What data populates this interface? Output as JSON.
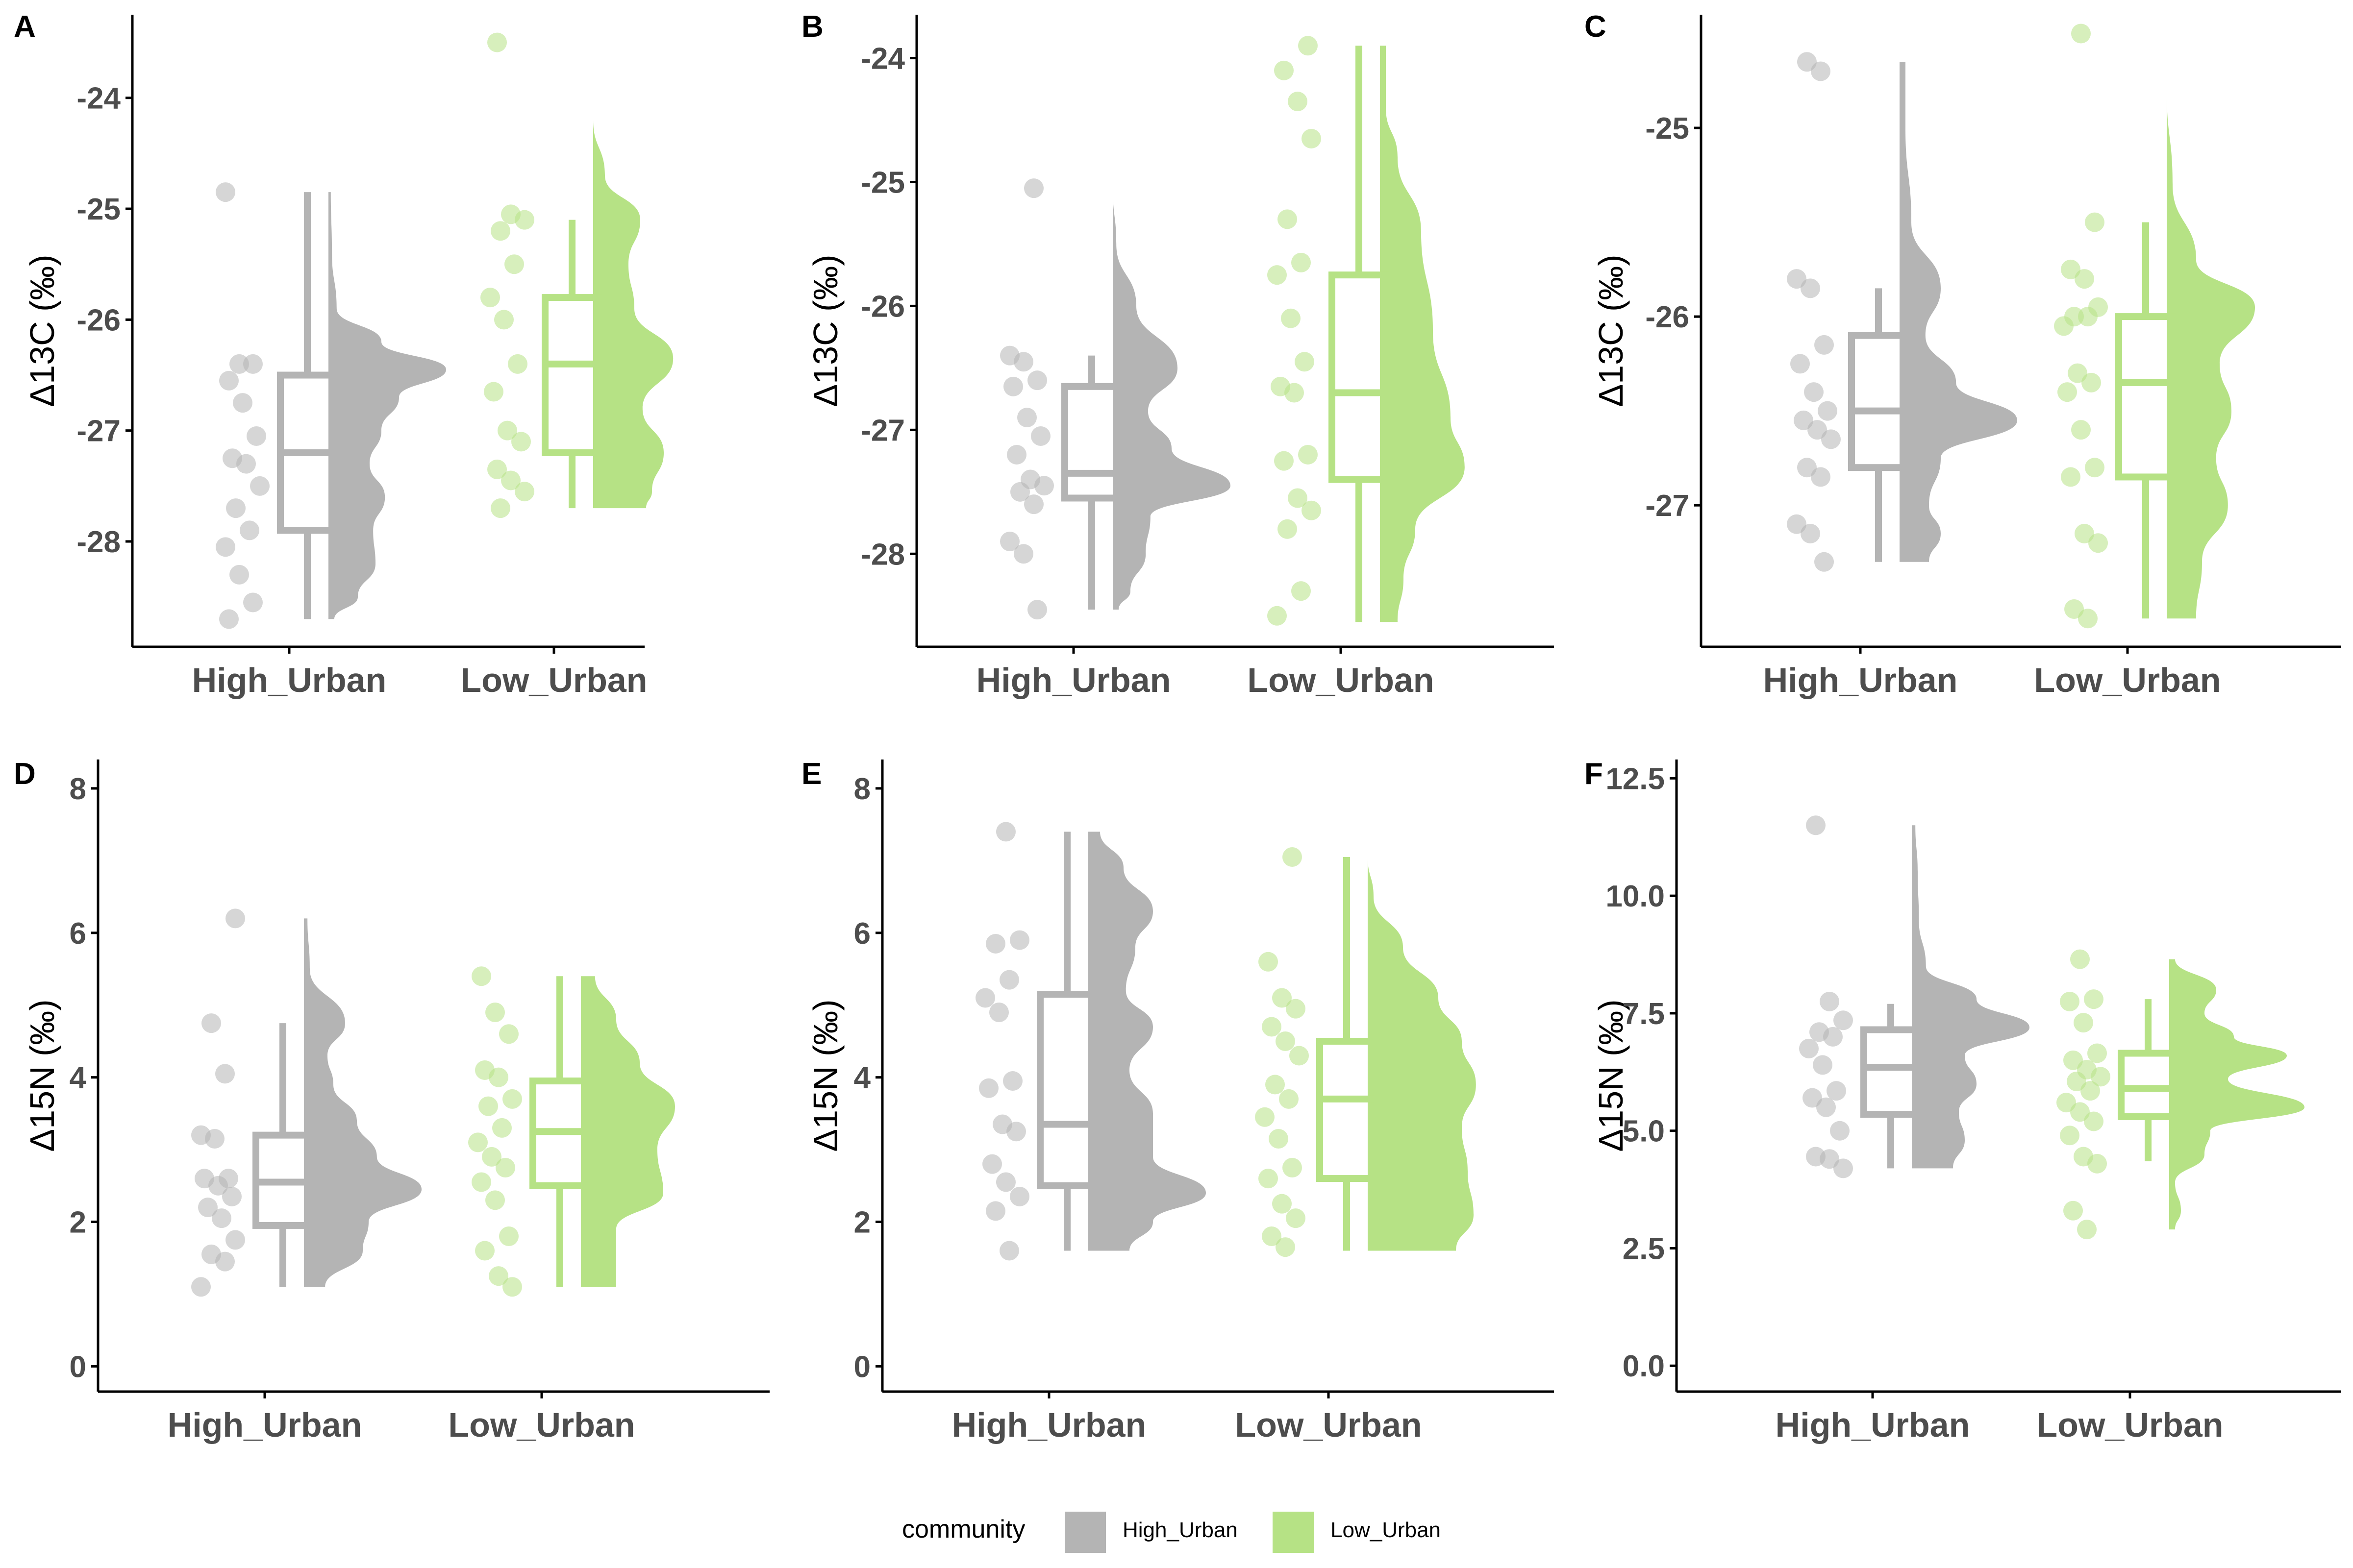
{
  "colors": {
    "High_Urban": "#b4b4b4",
    "Low_Urban": "#b6e285",
    "axis": "#000000",
    "tick_text": "#4d4d4d"
  },
  "legend": {
    "title": "community",
    "items": [
      "High_Urban",
      "Low_Urban"
    ],
    "position": "bottom"
  },
  "chart_data": [
    {
      "panel": "A",
      "type": "raincloud",
      "ylabel": "Δ13C (‰)",
      "categories": [
        "High_Urban",
        "Low_Urban"
      ],
      "ylim": [
        -28.95,
        -23.25
      ],
      "yticks": [
        -28,
        -27,
        -26,
        -25,
        -24
      ],
      "series": [
        {
          "name": "High_Urban",
          "box": {
            "min": -28.7,
            "q1": -27.9,
            "median": -27.2,
            "q3": -26.5,
            "max": -24.85
          },
          "points": [
            -24.85,
            -26.4,
            -26.4,
            -26.55,
            -26.75,
            -27.05,
            -27.25,
            -27.3,
            -27.5,
            -27.7,
            -27.9,
            -28.05,
            -28.3,
            -28.55,
            -28.7
          ],
          "density": [
            [
              -24.85,
              0.02
            ],
            [
              -25.4,
              0.03
            ],
            [
              -25.9,
              0.07
            ],
            [
              -26.2,
              0.45
            ],
            [
              -26.45,
              1.0
            ],
            [
              -26.7,
              0.6
            ],
            [
              -27.0,
              0.45
            ],
            [
              -27.3,
              0.35
            ],
            [
              -27.6,
              0.48
            ],
            [
              -27.9,
              0.38
            ],
            [
              -28.2,
              0.4
            ],
            [
              -28.5,
              0.25
            ],
            [
              -28.7,
              0.05
            ]
          ]
        },
        {
          "name": "Low_Urban",
          "box": {
            "min": -27.7,
            "q1": -27.2,
            "median": -26.4,
            "q3": -25.8,
            "max": -25.1
          },
          "points": [
            -23.5,
            -25.05,
            -25.1,
            -25.2,
            -25.5,
            -25.8,
            -26.0,
            -26.4,
            -26.65,
            -27.0,
            -27.1,
            -27.35,
            -27.45,
            -27.55,
            -27.7
          ],
          "density": [
            [
              -23.5,
              0.0
            ],
            [
              -24.2,
              0.0
            ],
            [
              -24.7,
              0.1
            ],
            [
              -25.1,
              0.4
            ],
            [
              -25.5,
              0.3
            ],
            [
              -25.9,
              0.35
            ],
            [
              -26.35,
              0.68
            ],
            [
              -26.8,
              0.42
            ],
            [
              -27.2,
              0.6
            ],
            [
              -27.55,
              0.5
            ],
            [
              -27.7,
              0.45
            ]
          ]
        }
      ]
    },
    {
      "panel": "B",
      "type": "raincloud",
      "ylabel": "Δ13C (‰)",
      "categories": [
        "High_Urban",
        "Low_Urban"
      ],
      "ylim": [
        -28.75,
        -23.65
      ],
      "yticks": [
        -28,
        -27,
        -26,
        -25,
        -24
      ],
      "series": [
        {
          "name": "High_Urban",
          "box": {
            "min": -28.45,
            "q1": -27.55,
            "median": -27.35,
            "q3": -26.65,
            "max": -26.4
          },
          "points": [
            -25.05,
            -26.4,
            -26.45,
            -26.6,
            -26.65,
            -26.9,
            -27.05,
            -27.2,
            -27.4,
            -27.45,
            -27.5,
            -27.6,
            -27.9,
            -28.0,
            -28.45
          ],
          "density": [
            [
              -25.05,
              0.0
            ],
            [
              -25.5,
              0.03
            ],
            [
              -26.0,
              0.2
            ],
            [
              -26.5,
              0.55
            ],
            [
              -26.85,
              0.3
            ],
            [
              -27.15,
              0.5
            ],
            [
              -27.45,
              1.0
            ],
            [
              -27.7,
              0.32
            ],
            [
              -28.0,
              0.28
            ],
            [
              -28.3,
              0.15
            ],
            [
              -28.45,
              0.05
            ]
          ]
        },
        {
          "name": "Low_Urban",
          "box": {
            "min": -28.55,
            "q1": -27.4,
            "median": -26.7,
            "q3": -25.75,
            "max": -23.9
          },
          "points": [
            -23.9,
            -24.1,
            -24.35,
            -24.65,
            -25.3,
            -25.65,
            -25.75,
            -26.1,
            -26.45,
            -26.65,
            -26.7,
            -27.2,
            -27.25,
            -27.55,
            -27.65,
            -27.8,
            -28.3,
            -28.5
          ],
          "density": [
            [
              -23.9,
              0.05
            ],
            [
              -24.4,
              0.05
            ],
            [
              -24.8,
              0.15
            ],
            [
              -25.4,
              0.35
            ],
            [
              -26.2,
              0.45
            ],
            [
              -26.9,
              0.6
            ],
            [
              -27.3,
              0.72
            ],
            [
              -27.8,
              0.3
            ],
            [
              -28.2,
              0.2
            ],
            [
              -28.55,
              0.15
            ]
          ]
        }
      ]
    },
    {
      "panel": "C",
      "type": "raincloud",
      "ylabel": "Δ13C (‰)",
      "categories": [
        "High_Urban",
        "Low_Urban"
      ],
      "ylim": [
        -27.75,
        -24.4
      ],
      "yticks": [
        -27,
        -26,
        -25
      ],
      "series": [
        {
          "name": "High_Urban",
          "box": {
            "min": -27.3,
            "q1": -26.8,
            "median": -26.5,
            "q3": -26.1,
            "max": -25.85
          },
          "points": [
            -24.65,
            -24.7,
            -25.8,
            -25.85,
            -26.15,
            -26.25,
            -26.4,
            -26.5,
            -26.55,
            -26.6,
            -26.65,
            -26.8,
            -26.85,
            -27.1,
            -27.15,
            -27.3
          ],
          "density": [
            [
              -24.65,
              0.05
            ],
            [
              -25.0,
              0.05
            ],
            [
              -25.5,
              0.1
            ],
            [
              -25.85,
              0.35
            ],
            [
              -26.1,
              0.22
            ],
            [
              -26.35,
              0.48
            ],
            [
              -26.55,
              1.0
            ],
            [
              -26.75,
              0.35
            ],
            [
              -27.0,
              0.25
            ],
            [
              -27.15,
              0.35
            ],
            [
              -27.3,
              0.25
            ]
          ]
        },
        {
          "name": "Low_Urban",
          "box": {
            "min": -27.6,
            "q1": -26.85,
            "median": -26.35,
            "q3": -26.0,
            "max": -25.5
          },
          "points": [
            -24.5,
            -25.5,
            -25.75,
            -25.8,
            -25.95,
            -26.0,
            -26.0,
            -26.05,
            -26.3,
            -26.35,
            -26.4,
            -26.6,
            -26.8,
            -26.85,
            -27.15,
            -27.2,
            -27.55,
            -27.6
          ],
          "density": [
            [
              -24.5,
              0.0
            ],
            [
              -24.8,
              0.0
            ],
            [
              -25.3,
              0.05
            ],
            [
              -25.7,
              0.25
            ],
            [
              -25.95,
              0.75
            ],
            [
              -26.25,
              0.45
            ],
            [
              -26.5,
              0.55
            ],
            [
              -26.75,
              0.42
            ],
            [
              -27.0,
              0.52
            ],
            [
              -27.3,
              0.3
            ],
            [
              -27.6,
              0.25
            ]
          ]
        }
      ]
    },
    {
      "panel": "D",
      "type": "raincloud",
      "ylabel": "Δ15N (‰)",
      "categories": [
        "High_Urban",
        "Low_Urban"
      ],
      "ylim": [
        -0.35,
        8.4
      ],
      "yticks": [
        0,
        2,
        4,
        6,
        8
      ],
      "series": [
        {
          "name": "High_Urban",
          "box": {
            "min": 1.1,
            "q1": 1.95,
            "median": 2.55,
            "q3": 3.2,
            "max": 4.75
          },
          "points": [
            6.2,
            4.75,
            4.05,
            3.2,
            3.15,
            2.6,
            2.6,
            2.5,
            2.35,
            2.2,
            2.05,
            1.75,
            1.55,
            1.45,
            1.1
          ],
          "density": [
            [
              6.2,
              0.03
            ],
            [
              5.5,
              0.05
            ],
            [
              4.75,
              0.35
            ],
            [
              4.3,
              0.2
            ],
            [
              3.9,
              0.25
            ],
            [
              3.4,
              0.45
            ],
            [
              2.9,
              0.62
            ],
            [
              2.45,
              1.0
            ],
            [
              2.0,
              0.55
            ],
            [
              1.6,
              0.5
            ],
            [
              1.1,
              0.18
            ]
          ]
        },
        {
          "name": "Low_Urban",
          "box": {
            "min": 1.1,
            "q1": 2.5,
            "median": 3.25,
            "q3": 3.95,
            "max": 5.4
          },
          "points": [
            5.4,
            4.9,
            4.6,
            4.1,
            4.0,
            3.7,
            3.6,
            3.3,
            3.1,
            2.9,
            2.75,
            2.55,
            2.3,
            1.8,
            1.6,
            1.25,
            1.1
          ],
          "density": [
            [
              5.4,
              0.12
            ],
            [
              4.8,
              0.3
            ],
            [
              4.2,
              0.5
            ],
            [
              3.6,
              0.8
            ],
            [
              3.0,
              0.65
            ],
            [
              2.4,
              0.7
            ],
            [
              1.9,
              0.3
            ],
            [
              1.5,
              0.3
            ],
            [
              1.1,
              0.3
            ]
          ]
        }
      ]
    },
    {
      "panel": "E",
      "type": "raincloud",
      "ylabel": "Δ15N (‰)",
      "categories": [
        "High_Urban",
        "Low_Urban"
      ],
      "ylim": [
        -0.35,
        8.4
      ],
      "yticks": [
        0,
        2,
        4,
        6,
        8
      ],
      "series": [
        {
          "name": "High_Urban",
          "box": {
            "min": 1.6,
            "q1": 2.5,
            "median": 3.35,
            "q3": 5.15,
            "max": 7.4
          },
          "points": [
            7.4,
            5.9,
            5.85,
            5.35,
            5.1,
            4.9,
            3.95,
            3.85,
            3.35,
            3.25,
            2.8,
            2.55,
            2.35,
            2.15,
            1.6
          ],
          "density": [
            [
              7.4,
              0.1
            ],
            [
              6.9,
              0.3
            ],
            [
              6.3,
              0.55
            ],
            [
              5.8,
              0.4
            ],
            [
              5.2,
              0.32
            ],
            [
              4.7,
              0.55
            ],
            [
              4.1,
              0.35
            ],
            [
              3.5,
              0.55
            ],
            [
              2.9,
              0.55
            ],
            [
              2.4,
              1.0
            ],
            [
              2.0,
              0.55
            ],
            [
              1.6,
              0.35
            ]
          ]
        },
        {
          "name": "Low_Urban",
          "box": {
            "min": 1.6,
            "q1": 2.6,
            "median": 3.7,
            "q3": 4.5,
            "max": 7.05
          },
          "points": [
            7.05,
            5.6,
            5.1,
            4.95,
            4.7,
            4.5,
            4.3,
            3.9,
            3.7,
            3.45,
            3.15,
            2.75,
            2.6,
            2.25,
            2.05,
            1.8,
            1.65
          ],
          "density": [
            [
              7.05,
              0.0
            ],
            [
              6.5,
              0.05
            ],
            [
              5.8,
              0.3
            ],
            [
              5.1,
              0.6
            ],
            [
              4.5,
              0.8
            ],
            [
              3.9,
              0.92
            ],
            [
              3.3,
              0.8
            ],
            [
              2.7,
              0.85
            ],
            [
              2.1,
              0.9
            ],
            [
              1.6,
              0.75
            ]
          ]
        }
      ]
    },
    {
      "panel": "F",
      "type": "raincloud",
      "ylabel": "Δ15N (‰)",
      "categories": [
        "High_Urban",
        "Low_Urban"
      ],
      "ylim": [
        -0.55,
        12.9
      ],
      "yticks": [
        0.0,
        2.5,
        5.0,
        7.5,
        10.0,
        12.5
      ],
      "series": [
        {
          "name": "High_Urban",
          "box": {
            "min": 4.2,
            "q1": 5.35,
            "median": 6.35,
            "q3": 7.15,
            "max": 7.7
          },
          "points": [
            11.5,
            7.75,
            7.35,
            7.1,
            7.0,
            6.75,
            6.4,
            5.85,
            5.7,
            5.5,
            5.0,
            4.45,
            4.4,
            4.2
          ],
          "density": [
            [
              11.5,
              0.03
            ],
            [
              10.5,
              0.05
            ],
            [
              9.5,
              0.06
            ],
            [
              8.5,
              0.12
            ],
            [
              7.8,
              0.55
            ],
            [
              7.2,
              1.0
            ],
            [
              6.6,
              0.45
            ],
            [
              6.0,
              0.55
            ],
            [
              5.4,
              0.4
            ],
            [
              4.8,
              0.45
            ],
            [
              4.2,
              0.35
            ]
          ]
        },
        {
          "name": "Low_Urban",
          "box": {
            "min": 4.35,
            "q1": 5.3,
            "median": 5.9,
            "q3": 6.65,
            "max": 7.8
          },
          "points": [
            8.65,
            7.8,
            7.75,
            7.3,
            6.65,
            6.5,
            6.3,
            6.15,
            6.05,
            5.85,
            5.6,
            5.4,
            5.2,
            4.9,
            4.45,
            4.3,
            3.3,
            2.9
          ],
          "density": [
            [
              8.65,
              0.05
            ],
            [
              8.0,
              0.4
            ],
            [
              7.5,
              0.3
            ],
            [
              7.0,
              0.55
            ],
            [
              6.6,
              1.0
            ],
            [
              6.1,
              0.5
            ],
            [
              5.5,
              1.15
            ],
            [
              5.0,
              0.35
            ],
            [
              4.5,
              0.3
            ],
            [
              3.9,
              0.05
            ],
            [
              3.3,
              0.1
            ],
            [
              2.9,
              0.05
            ]
          ]
        }
      ]
    }
  ]
}
